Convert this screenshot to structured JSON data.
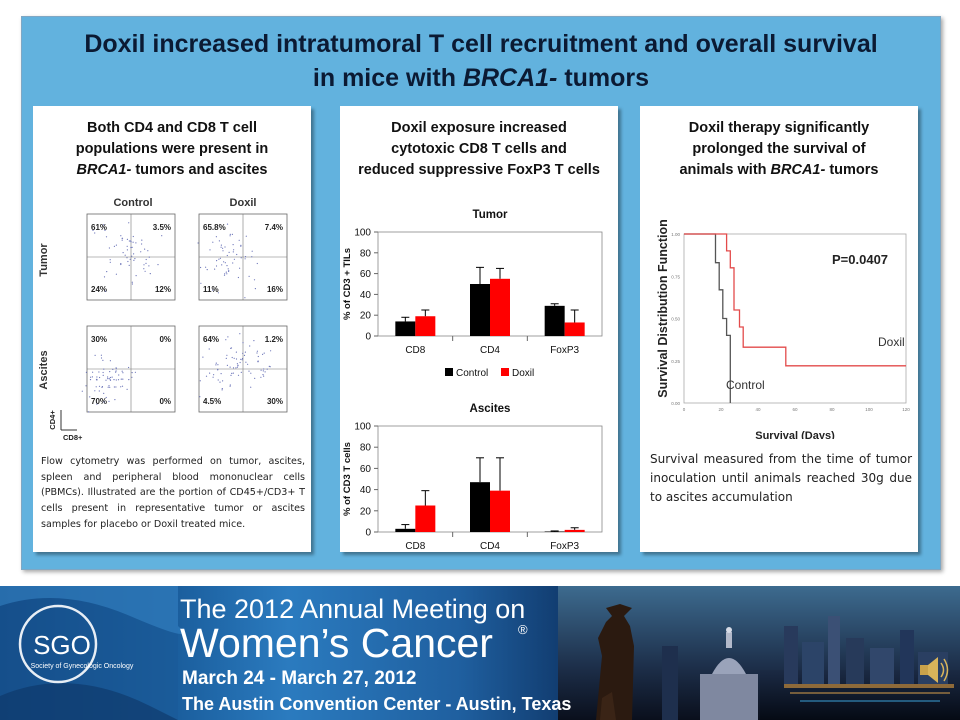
{
  "slide": {
    "title_line1": "Doxil increased intratumoral T cell recruitment and overall survival",
    "title_line2_pre": "in mice with ",
    "title_line2_em": "BRCA1-",
    "title_line2_post": " tumors"
  },
  "col1": {
    "title_line1": "Both CD4 and CD8 T cell",
    "title_line2": "populations were present in",
    "title_line3_em": "BRCA1-",
    "title_line3_post": " tumors and ascites",
    "flow": {
      "col_control": "Control",
      "col_doxil": "Doxil",
      "row_tumor": "Tumor",
      "row_ascites": "Ascites",
      "x_axis_label": "CD8+",
      "y_axis_label": "CD4+",
      "tumor_control": [
        "61%",
        "3.5%",
        "24%",
        "12%"
      ],
      "tumor_doxil": [
        "65.8%",
        "7.4%",
        "11%",
        "16%"
      ],
      "ascites_control": [
        "30%",
        "0%",
        "70%",
        "0%"
      ],
      "ascites_doxil": [
        "64%",
        "1.2%",
        "4.5%",
        "30%"
      ]
    },
    "caption": "Flow cytometry was performed on tumor, ascites, spleen and peripheral blood mononuclear cells (PBMCs). Illustrated are the portion of CD45+/CD3+ T cells present in representative tumor or ascites samples for placebo or Doxil treated mice."
  },
  "col2": {
    "title_line1": "Doxil exposure increased",
    "title_line2": "cytotoxic CD8 T cells and",
    "title_line3": "reduced suppressive FoxP3 T cells"
  },
  "col3": {
    "title_line1": "Doxil therapy significantly",
    "title_line2": "prolonged the survival of",
    "title_line3_pre": "animals with ",
    "title_line3_em": "BRCA1-",
    "title_line3_post": " tumors",
    "caption": "Survival measured from the time of tumor inoculation until animals reached 30g due to ascites accumulation"
  },
  "chart_data": [
    {
      "type": "bar",
      "title": "Tumor",
      "ylabel": "% of CD3 + TILs",
      "categories": [
        "CD8",
        "CD4",
        "FoxP3"
      ],
      "series": [
        {
          "name": "Control",
          "color": "#000000",
          "values": [
            14,
            50,
            29
          ],
          "errors": [
            4,
            16,
            2
          ]
        },
        {
          "name": "Doxil",
          "color": "#ff0000",
          "values": [
            19,
            55,
            13
          ],
          "errors": [
            6,
            10,
            12
          ]
        }
      ],
      "ylim": [
        0,
        100
      ],
      "yticks": [
        0,
        20,
        40,
        60,
        80,
        100
      ],
      "legend": "bottom"
    },
    {
      "type": "bar",
      "title": "Ascites",
      "ylabel": "% of CD3 T cells",
      "categories": [
        "CD8",
        "CD4",
        "FoxP3"
      ],
      "series": [
        {
          "name": "Control",
          "color": "#000000",
          "values": [
            3,
            47,
            0.5
          ],
          "errors": [
            4,
            23,
            0.5
          ]
        },
        {
          "name": "Doxil",
          "color": "#ff0000",
          "values": [
            25,
            39,
            2
          ],
          "errors": [
            14,
            31,
            2
          ]
        }
      ],
      "ylim": [
        0,
        100
      ],
      "yticks": [
        0,
        20,
        40,
        60,
        80,
        100
      ]
    },
    {
      "type": "line",
      "title": "",
      "xlabel": "Survival (Days)",
      "ylabel": "Survival Distribution Function",
      "annotation": "P=0.0407",
      "xlim": [
        0,
        120
      ],
      "ylim": [
        0,
        1
      ],
      "xticks": [
        0,
        20,
        40,
        60,
        80,
        100,
        120
      ],
      "yticks": [
        "0.00",
        "0.25",
        "0.50",
        "0.75",
        "1.00"
      ],
      "series": [
        {
          "name": "Control",
          "color": "#555555",
          "points": [
            [
              0,
              1.0
            ],
            [
              17,
              1.0
            ],
            [
              17,
              0.83
            ],
            [
              19,
              0.83
            ],
            [
              19,
              0.67
            ],
            [
              21,
              0.67
            ],
            [
              21,
              0.5
            ],
            [
              23,
              0.5
            ],
            [
              23,
              0.4
            ],
            [
              25,
              0.4
            ],
            [
              25,
              0.0
            ]
          ]
        },
        {
          "name": "Doxil",
          "color": "#e34b4b",
          "points": [
            [
              0,
              1.0
            ],
            [
              23,
              1.0
            ],
            [
              23,
              0.9
            ],
            [
              25,
              0.9
            ],
            [
              25,
              0.8
            ],
            [
              27,
              0.8
            ],
            [
              27,
              0.55
            ],
            [
              30,
              0.55
            ],
            [
              30,
              0.45
            ],
            [
              32,
              0.45
            ],
            [
              32,
              0.33
            ],
            [
              55,
              0.33
            ],
            [
              55,
              0.22
            ],
            [
              120,
              0.22
            ]
          ]
        }
      ]
    }
  ],
  "banner": {
    "sgo_logo_text": "SGO",
    "sgo_org": "Society of Gynecologic Oncology",
    "line1": "The 2012 Annual Meeting on",
    "line2": "Women’s Cancer",
    "reg": "®",
    "line3": "March 24 - March 27, 2012",
    "line4": "The Austin Convention Center - Austin, Texas",
    "speaker_icon": "speaker-icon"
  }
}
